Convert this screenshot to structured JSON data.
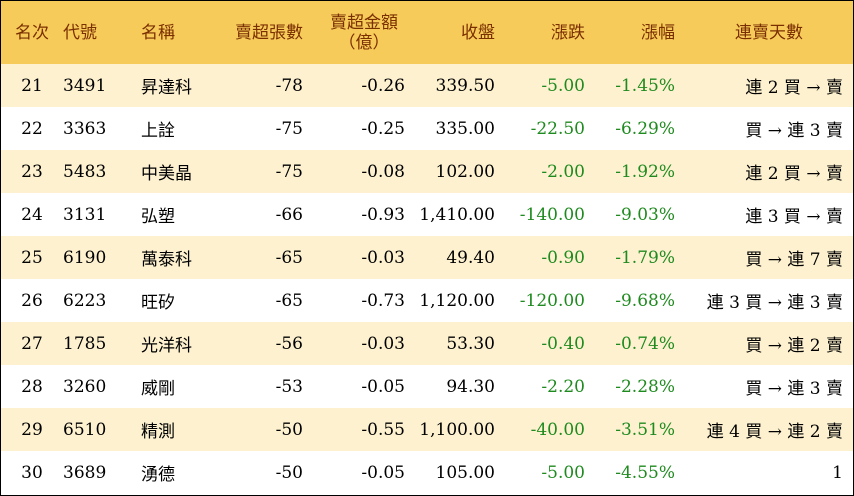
{
  "colors": {
    "header_bg": "#f7cb5a",
    "header_text": "#7a2f00",
    "row_odd_bg": "#fdf1cf",
    "negative_text": "#1f8a1f"
  },
  "header": {
    "rank": "名次",
    "code": "代號",
    "name": "名稱",
    "net_sell_lots": "賣超張數",
    "net_sell_amount_line1": "賣超金額",
    "net_sell_amount_line2": "（億）",
    "close": "收盤",
    "change": "漲跌",
    "change_pct": "漲幅",
    "streak": "連賣天數"
  },
  "rows": [
    {
      "rank": "21",
      "code": "3491",
      "name": "昇達科",
      "lots": "-78",
      "amount": "-0.26",
      "close": "339.50",
      "change": "-5.00",
      "pct": "-1.45%",
      "streak": "連 2 買 → 賣"
    },
    {
      "rank": "22",
      "code": "3363",
      "name": "上詮",
      "lots": "-75",
      "amount": "-0.25",
      "close": "335.00",
      "change": "-22.50",
      "pct": "-6.29%",
      "streak": "買 → 連 3 賣"
    },
    {
      "rank": "23",
      "code": "5483",
      "name": "中美晶",
      "lots": "-75",
      "amount": "-0.08",
      "close": "102.00",
      "change": "-2.00",
      "pct": "-1.92%",
      "streak": "連 2 買 → 賣"
    },
    {
      "rank": "24",
      "code": "3131",
      "name": "弘塑",
      "lots": "-66",
      "amount": "-0.93",
      "close": "1,410.00",
      "change": "-140.00",
      "pct": "-9.03%",
      "streak": "連 3 買 → 賣"
    },
    {
      "rank": "25",
      "code": "6190",
      "name": "萬泰科",
      "lots": "-65",
      "amount": "-0.03",
      "close": "49.40",
      "change": "-0.90",
      "pct": "-1.79%",
      "streak": "買 → 連 7 賣"
    },
    {
      "rank": "26",
      "code": "6223",
      "name": "旺矽",
      "lots": "-65",
      "amount": "-0.73",
      "close": "1,120.00",
      "change": "-120.00",
      "pct": "-9.68%",
      "streak": "連 3 買 → 連 3 賣"
    },
    {
      "rank": "27",
      "code": "1785",
      "name": "光洋科",
      "lots": "-56",
      "amount": "-0.03",
      "close": "53.30",
      "change": "-0.40",
      "pct": "-0.74%",
      "streak": "買 → 連 2 賣"
    },
    {
      "rank": "28",
      "code": "3260",
      "name": "威剛",
      "lots": "-53",
      "amount": "-0.05",
      "close": "94.30",
      "change": "-2.20",
      "pct": "-2.28%",
      "streak": "買 → 連 3 賣"
    },
    {
      "rank": "29",
      "code": "6510",
      "name": "精測",
      "lots": "-50",
      "amount": "-0.55",
      "close": "1,100.00",
      "change": "-40.00",
      "pct": "-3.51%",
      "streak": "連 4 買 → 連 2 賣"
    },
    {
      "rank": "30",
      "code": "3689",
      "name": "湧德",
      "lots": "-50",
      "amount": "-0.05",
      "close": "105.00",
      "change": "-5.00",
      "pct": "-4.55%",
      "streak": "1"
    }
  ]
}
